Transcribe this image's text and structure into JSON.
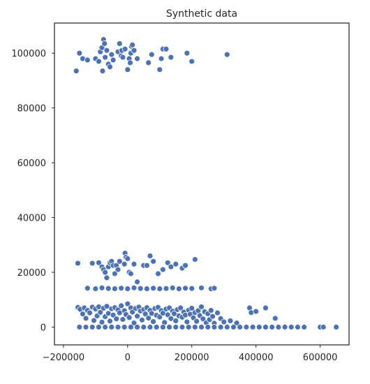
{
  "chart_data": {
    "type": "scatter",
    "title": "Synthetic data",
    "xlabel": "",
    "ylabel": "",
    "xlim": [
      -228000,
      690000
    ],
    "ylim": [
      -6500,
      111000
    ],
    "xticks": [
      -200000,
      0,
      200000,
      400000,
      600000
    ],
    "xtick_labels": [
      "−200000",
      "0",
      "200000",
      "400000",
      "600000"
    ],
    "yticks": [
      0,
      20000,
      40000,
      60000,
      80000,
      100000
    ],
    "ytick_labels": [
      "0",
      "20000",
      "40000",
      "60000",
      "80000",
      "100000"
    ],
    "grid": false,
    "marker_color": "#4c72b0",
    "marker_edge_color": "#ffffff",
    "clusters": [
      {
        "label": "cluster near y=100000",
        "points": [
          [
            -160000,
            93500
          ],
          [
            -150000,
            100000
          ],
          [
            -140000,
            98000
          ],
          [
            -125000,
            97500
          ],
          [
            -100000,
            98000
          ],
          [
            -90000,
            97000
          ],
          [
            -85000,
            100500
          ],
          [
            -80000,
            102000
          ],
          [
            -75000,
            105000
          ],
          [
            -72000,
            103500
          ],
          [
            -70000,
            98500
          ],
          [
            -65000,
            101000
          ],
          [
            -60000,
            96000
          ],
          [
            -55000,
            95000
          ],
          [
            -50000,
            99500
          ],
          [
            -45000,
            97500
          ],
          [
            -30000,
            100500
          ],
          [
            -25000,
            103500
          ],
          [
            -20000,
            99000
          ],
          [
            -18000,
            101000
          ],
          [
            -15000,
            98500
          ],
          [
            -8000,
            101500
          ],
          [
            0,
            94000
          ],
          [
            5000,
            98000
          ],
          [
            8000,
            96500
          ],
          [
            10000,
            100000
          ],
          [
            12000,
            102500
          ],
          [
            15000,
            103000
          ],
          [
            20000,
            101000
          ],
          [
            30000,
            98000
          ],
          [
            65000,
            96500
          ],
          [
            75000,
            99500
          ],
          [
            100000,
            94000
          ],
          [
            105000,
            98000
          ],
          [
            110000,
            101500
          ],
          [
            120000,
            101500
          ],
          [
            135000,
            98500
          ],
          [
            185000,
            100000
          ],
          [
            200000,
            97000
          ],
          [
            310000,
            99500
          ],
          [
            -78000,
            93500
          ]
        ]
      },
      {
        "label": "cluster near y=20000",
        "points": [
          [
            -155000,
            23300
          ],
          [
            -110000,
            23300
          ],
          [
            -90000,
            23500
          ],
          [
            -80000,
            22000
          ],
          [
            -75000,
            21000
          ],
          [
            -70000,
            20000
          ],
          [
            -65000,
            18000
          ],
          [
            -60000,
            22000
          ],
          [
            -55000,
            23500
          ],
          [
            -50000,
            24000
          ],
          [
            -45000,
            22500
          ],
          [
            -40000,
            19500
          ],
          [
            -35000,
            22500
          ],
          [
            -30000,
            21000
          ],
          [
            -25000,
            24000
          ],
          [
            -10000,
            23000
          ],
          [
            -8000,
            27000
          ],
          [
            -5000,
            25500
          ],
          [
            0,
            25000
          ],
          [
            5000,
            20000
          ],
          [
            10000,
            19500
          ],
          [
            20000,
            23000
          ],
          [
            30000,
            16500
          ],
          [
            50000,
            22500
          ],
          [
            60000,
            22500
          ],
          [
            70000,
            26000
          ],
          [
            80000,
            24000
          ],
          [
            95000,
            19500
          ],
          [
            110000,
            21000
          ],
          [
            125000,
            23500
          ],
          [
            135000,
            22000
          ],
          [
            150000,
            23000
          ],
          [
            170000,
            21500
          ],
          [
            180000,
            22500
          ],
          [
            210000,
            24700
          ],
          [
            -125000,
            14200
          ],
          [
            -100000,
            14000
          ],
          [
            -80000,
            14300
          ],
          [
            -60000,
            14100
          ],
          [
            -40000,
            14000
          ],
          [
            -20000,
            14200
          ],
          [
            0,
            14000
          ],
          [
            20000,
            14300
          ],
          [
            40000,
            14100
          ],
          [
            60000,
            14000
          ],
          [
            80000,
            14200
          ],
          [
            100000,
            14000
          ],
          [
            120000,
            14100
          ],
          [
            140000,
            14300
          ],
          [
            160000,
            14000
          ],
          [
            180000,
            14200
          ],
          [
            200000,
            14100
          ],
          [
            230000,
            14300
          ],
          [
            260000,
            14000
          ],
          [
            270000,
            14200
          ]
        ]
      },
      {
        "label": "cluster near y=0",
        "points": [
          [
            -155000,
            7200
          ],
          [
            -148000,
            6500
          ],
          [
            -140000,
            4800
          ],
          [
            -135000,
            7000
          ],
          [
            -130000,
            3200
          ],
          [
            -125000,
            6100
          ],
          [
            -118000,
            5200
          ],
          [
            -110000,
            7300
          ],
          [
            -105000,
            2400
          ],
          [
            -100000,
            6600
          ],
          [
            -95000,
            4100
          ],
          [
            -90000,
            7400
          ],
          [
            -85000,
            5400
          ],
          [
            -80000,
            1800
          ],
          [
            -75000,
            6900
          ],
          [
            -70000,
            3800
          ],
          [
            -65000,
            7600
          ],
          [
            -60000,
            5000
          ],
          [
            -55000,
            2200
          ],
          [
            -50000,
            6700
          ],
          [
            -45000,
            4400
          ],
          [
            -40000,
            7100
          ],
          [
            -35000,
            3000
          ],
          [
            -30000,
            6300
          ],
          [
            -25000,
            5200
          ],
          [
            -20000,
            7800
          ],
          [
            -15000,
            2800
          ],
          [
            -10000,
            6000
          ],
          [
            -5000,
            4600
          ],
          [
            0,
            8500
          ],
          [
            5000,
            3500
          ],
          [
            10000,
            7000
          ],
          [
            15000,
            5500
          ],
          [
            20000,
            1500
          ],
          [
            25000,
            6800
          ],
          [
            30000,
            4000
          ],
          [
            35000,
            7300
          ],
          [
            40000,
            5900
          ],
          [
            45000,
            2600
          ],
          [
            50000,
            6400
          ],
          [
            55000,
            4800
          ],
          [
            60000,
            7100
          ],
          [
            65000,
            3300
          ],
          [
            70000,
            6100
          ],
          [
            75000,
            5000
          ],
          [
            80000,
            2000
          ],
          [
            85000,
            6800
          ],
          [
            90000,
            4300
          ],
          [
            95000,
            7200
          ],
          [
            100000,
            3700
          ],
          [
            105000,
            6000
          ],
          [
            110000,
            5100
          ],
          [
            115000,
            1700
          ],
          [
            120000,
            6600
          ],
          [
            125000,
            4500
          ],
          [
            130000,
            7000
          ],
          [
            135000,
            3100
          ],
          [
            140000,
            5800
          ],
          [
            145000,
            4900
          ],
          [
            150000,
            2300
          ],
          [
            155000,
            6400
          ],
          [
            160000,
            4100
          ],
          [
            165000,
            7000
          ],
          [
            170000,
            3600
          ],
          [
            175000,
            5500
          ],
          [
            180000,
            4400
          ],
          [
            185000,
            1900
          ],
          [
            190000,
            6200
          ],
          [
            195000,
            4700
          ],
          [
            200000,
            6900
          ],
          [
            205000,
            3400
          ],
          [
            210000,
            5300
          ],
          [
            215000,
            2100
          ],
          [
            220000,
            6000
          ],
          [
            225000,
            4200
          ],
          [
            230000,
            7400
          ],
          [
            235000,
            3000
          ],
          [
            240000,
            5600
          ],
          [
            245000,
            1600
          ],
          [
            250000,
            4900
          ],
          [
            255000,
            2700
          ],
          [
            260000,
            6100
          ],
          [
            265000,
            3900
          ],
          [
            270000,
            1400
          ],
          [
            280000,
            5200
          ],
          [
            290000,
            3100
          ],
          [
            300000,
            1900
          ],
          [
            320000,
            2300
          ],
          [
            340000,
            1500
          ],
          [
            380000,
            7000
          ],
          [
            385000,
            5300
          ],
          [
            400000,
            5700
          ],
          [
            430000,
            7000
          ],
          [
            460000,
            3200
          ],
          [
            -150000,
            0
          ],
          [
            -130000,
            0
          ],
          [
            -110000,
            0
          ],
          [
            -90000,
            0
          ],
          [
            -70000,
            0
          ],
          [
            -50000,
            0
          ],
          [
            -30000,
            0
          ],
          [
            -10000,
            0
          ],
          [
            10000,
            0
          ],
          [
            30000,
            0
          ],
          [
            50000,
            0
          ],
          [
            70000,
            0
          ],
          [
            90000,
            0
          ],
          [
            110000,
            0
          ],
          [
            130000,
            0
          ],
          [
            150000,
            0
          ],
          [
            170000,
            0
          ],
          [
            190000,
            0
          ],
          [
            210000,
            0
          ],
          [
            230000,
            0
          ],
          [
            250000,
            0
          ],
          [
            270000,
            0
          ],
          [
            290000,
            0
          ],
          [
            310000,
            0
          ],
          [
            330000,
            0
          ],
          [
            350000,
            0
          ],
          [
            370000,
            0
          ],
          [
            390000,
            0
          ],
          [
            410000,
            0
          ],
          [
            430000,
            0
          ],
          [
            450000,
            0
          ],
          [
            470000,
            0
          ],
          [
            490000,
            0
          ],
          [
            510000,
            0
          ],
          [
            530000,
            0
          ],
          [
            550000,
            0
          ],
          [
            600000,
            0
          ],
          [
            610000,
            0
          ],
          [
            650000,
            0
          ]
        ]
      }
    ]
  }
}
